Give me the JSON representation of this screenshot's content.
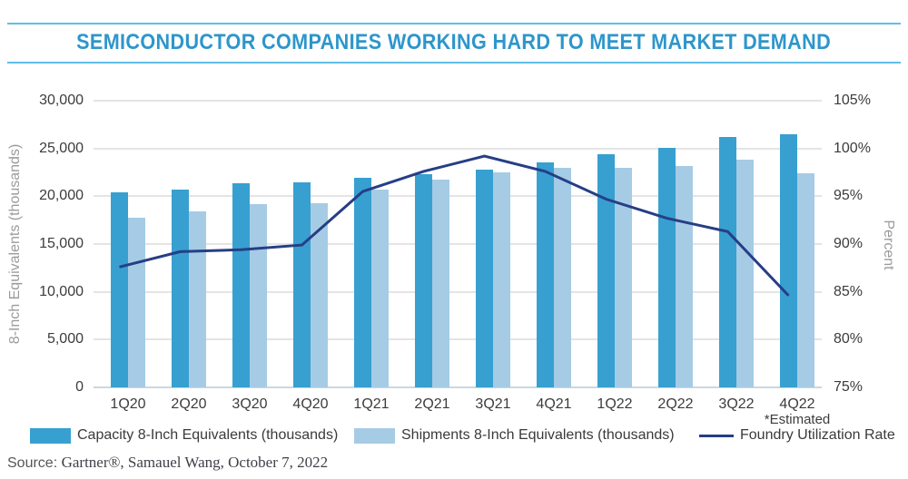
{
  "title": "SEMICONDUCTOR COMPANIES WORKING HARD TO MEET MARKET DEMAND",
  "colors": {
    "title": "#2D96CB",
    "rule": "#5FBEE9",
    "capacity_bar": "#37A0D0",
    "shipments_bar": "#A6CBE5",
    "utilization_line": "#263E86",
    "gridline": "#E4E4E4",
    "axis_line": "#C9D8E2",
    "tick_label": "#3C3C3C",
    "axis_title": "#9B9B9B"
  },
  "chart_data": {
    "type": "bar+line combo",
    "grid": true,
    "legend_position": "bottom",
    "categories": [
      "1Q20",
      "2Q20",
      "3Q20",
      "4Q20",
      "1Q21",
      "2Q21",
      "3Q21",
      "4Q21",
      "1Q22",
      "2Q22",
      "3Q22",
      "4Q22"
    ],
    "estimated_note": "*Estimated",
    "estimated_category": "4Q22",
    "series": [
      {
        "name": "Capacity 8-Inch Equivalents (thousands)",
        "type": "bar",
        "axis": "left",
        "values": [
          20400,
          20700,
          21400,
          21500,
          21900,
          22300,
          22800,
          23500,
          24400,
          25100,
          26200,
          26500
        ]
      },
      {
        "name": "Shipments 8-Inch Equivalents (thousands)",
        "type": "bar",
        "axis": "left",
        "values": [
          17800,
          18400,
          19200,
          19300,
          20700,
          21700,
          22500,
          23000,
          23000,
          23200,
          23800,
          22400
        ]
      },
      {
        "name": "Foundry Utilization Rate",
        "type": "line",
        "axis": "right",
        "values": [
          87.6,
          89.2,
          89.4,
          89.9,
          95.5,
          97.6,
          99.2,
          97.6,
          94.7,
          92.7,
          91.3,
          84.6
        ]
      }
    ],
    "left_axis": {
      "label": "8-Inch Equivalents (thousands)",
      "min": 0,
      "max": 30000,
      "step": 5000,
      "tick_labels": [
        "30,000",
        "25,000",
        "20,000",
        "15,000",
        "10,000",
        "5,000",
        "0"
      ]
    },
    "right_axis": {
      "label": "Percent",
      "min": 75,
      "max": 105,
      "step": 5,
      "tick_labels": [
        "105%",
        "100%",
        "95%",
        "90%",
        "85%",
        "80%",
        "75%"
      ]
    }
  },
  "legend": [
    {
      "label": "Capacity 8-Inch Equivalents (thousands)",
      "swatch": "capacity"
    },
    {
      "label": "Shipments 8-Inch Equivalents (thousands)",
      "swatch": "shipments"
    },
    {
      "label": "Foundry Utilization Rate",
      "swatch": "line"
    }
  ],
  "source": {
    "prefix": "Source:",
    "text": "Gartner®, Samauel Wang, October 7, 2022"
  }
}
